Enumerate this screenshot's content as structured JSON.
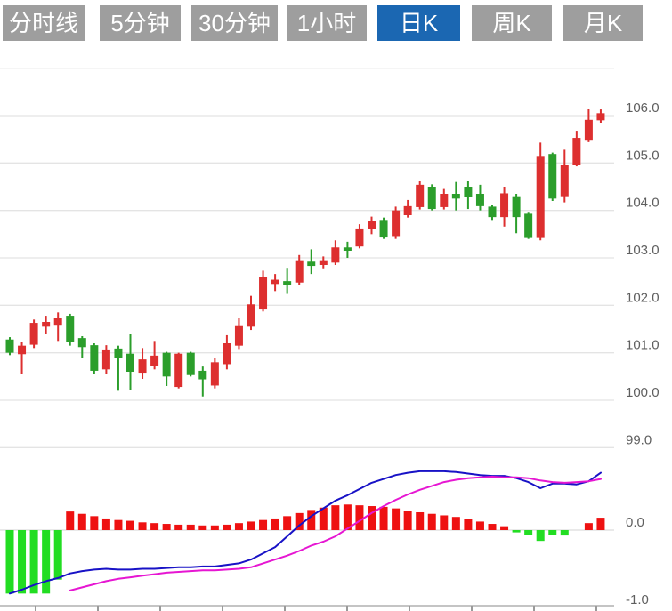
{
  "toolbar": {
    "tabs": [
      {
        "label": "分时线",
        "active": false
      },
      {
        "label": "5分钟",
        "active": false
      },
      {
        "label": "30分钟",
        "active": false
      },
      {
        "label": "1小时",
        "active": false
      },
      {
        "label": "日K",
        "active": true
      },
      {
        "label": "周K",
        "active": false
      },
      {
        "label": "月K",
        "active": false
      }
    ]
  },
  "colors": {
    "tab_bg": "#9e9e9e",
    "tab_active_bg": "#1b67b2",
    "tab_text": "#ffffff",
    "candle_up": "#dd2f2f",
    "candle_down": "#2b9e2b",
    "macd_bar_up": "#ee1111",
    "macd_bar_down": "#22dd22",
    "dif_line": "#1812c6",
    "dea_line": "#e616d2",
    "gridline": "#e4e4e4",
    "zero_line": "#dcdcdc",
    "axis_border": "#c4c4c4",
    "tick": "#9a9a9a",
    "axis_label": "#5f5f5f"
  },
  "chart_data": {
    "type": "candlestick",
    "title": "",
    "legend": [],
    "grid": true,
    "up_color_convention": "red = close above open, green = close below open",
    "price_panel": {
      "ylim": [
        99,
        107
      ],
      "gridline_values": [
        107,
        106,
        105,
        104,
        103,
        102,
        101,
        100,
        99
      ],
      "axis_labels": [
        "106.0",
        "105.0",
        "104.0",
        "103.0",
        "102.0",
        "101.0",
        "100.0",
        "99.0"
      ],
      "ohlc": [
        [
          101.28,
          101.33,
          100.95,
          101.0
        ],
        [
          100.97,
          101.22,
          100.55,
          101.15
        ],
        [
          101.17,
          101.7,
          101.1,
          101.63
        ],
        [
          101.55,
          101.78,
          101.4,
          101.65
        ],
        [
          101.59,
          101.85,
          101.25,
          101.74
        ],
        [
          101.78,
          101.82,
          101.15,
          101.22
        ],
        [
          101.31,
          101.35,
          100.9,
          101.12
        ],
        [
          101.16,
          101.2,
          100.55,
          100.62
        ],
        [
          100.65,
          101.16,
          100.55,
          101.07
        ],
        [
          101.09,
          101.15,
          100.2,
          100.9
        ],
        [
          100.98,
          101.4,
          100.22,
          100.6
        ],
        [
          100.58,
          101.1,
          100.45,
          100.86
        ],
        [
          100.72,
          101.25,
          100.65,
          100.94
        ],
        [
          101.0,
          101.02,
          100.3,
          100.5
        ],
        [
          100.28,
          101.0,
          100.25,
          100.98
        ],
        [
          101.0,
          101.02,
          100.5,
          100.53
        ],
        [
          100.62,
          100.71,
          100.08,
          100.44
        ],
        [
          100.31,
          100.9,
          100.25,
          100.8
        ],
        [
          100.76,
          101.37,
          100.65,
          101.2
        ],
        [
          101.15,
          101.73,
          101.08,
          101.58
        ],
        [
          101.55,
          102.2,
          101.48,
          102.02
        ],
        [
          101.93,
          102.73,
          101.87,
          102.6
        ],
        [
          102.45,
          102.66,
          102.3,
          102.54
        ],
        [
          102.51,
          102.79,
          102.24,
          102.42
        ],
        [
          102.48,
          103.06,
          102.43,
          102.95
        ],
        [
          102.92,
          103.18,
          102.66,
          102.83
        ],
        [
          102.85,
          103.03,
          102.78,
          102.95
        ],
        [
          102.9,
          103.37,
          102.85,
          103.22
        ],
        [
          103.22,
          103.34,
          103.0,
          103.15
        ],
        [
          103.24,
          103.71,
          103.2,
          103.62
        ],
        [
          103.6,
          103.87,
          103.5,
          103.78
        ],
        [
          103.8,
          103.85,
          103.4,
          103.43
        ],
        [
          103.46,
          104.08,
          103.4,
          104.0
        ],
        [
          103.9,
          104.22,
          103.85,
          104.09
        ],
        [
          104.07,
          104.62,
          104.02,
          104.54
        ],
        [
          104.5,
          104.55,
          104.0,
          104.03
        ],
        [
          104.07,
          104.47,
          104.02,
          104.35
        ],
        [
          104.35,
          104.6,
          104.0,
          104.25
        ],
        [
          104.5,
          104.62,
          104.03,
          104.28
        ],
        [
          104.35,
          104.54,
          104.0,
          104.09
        ],
        [
          104.08,
          104.12,
          103.8,
          103.86
        ],
        [
          103.86,
          104.5,
          103.66,
          104.36
        ],
        [
          104.3,
          104.35,
          103.52,
          103.86
        ],
        [
          103.93,
          103.97,
          103.4,
          103.42
        ],
        [
          103.42,
          105.43,
          103.37,
          105.15
        ],
        [
          105.19,
          105.22,
          104.2,
          104.25
        ],
        [
          104.3,
          105.28,
          104.17,
          104.96
        ],
        [
          104.96,
          105.68,
          104.93,
          105.53
        ],
        [
          105.49,
          106.15,
          105.44,
          105.91
        ],
        [
          105.9,
          106.13,
          105.85,
          106.05
        ]
      ]
    },
    "macd_panel": {
      "ylim": [
        -1.0,
        1.0
      ],
      "axis_labels": [
        "0.0",
        "-1.0"
      ],
      "histogram": [
        -0.82,
        -0.82,
        -0.82,
        -0.82,
        -0.64,
        0.24,
        0.21,
        0.18,
        0.15,
        0.13,
        0.12,
        0.1,
        0.09,
        0.08,
        0.07,
        0.07,
        0.06,
        0.06,
        0.07,
        0.09,
        0.11,
        0.13,
        0.15,
        0.18,
        0.22,
        0.26,
        0.29,
        0.32,
        0.33,
        0.32,
        0.31,
        0.3,
        0.28,
        0.25,
        0.23,
        0.21,
        0.19,
        0.17,
        0.14,
        0.11,
        0.08,
        0.05,
        -0.03,
        -0.06,
        -0.14,
        -0.06,
        -0.07,
        0.0,
        0.09,
        0.16
      ],
      "dif": [
        -0.82,
        -0.77,
        -0.71,
        -0.66,
        -0.62,
        -0.56,
        -0.53,
        -0.51,
        -0.5,
        -0.51,
        -0.51,
        -0.5,
        -0.5,
        -0.49,
        -0.48,
        -0.48,
        -0.47,
        -0.47,
        -0.45,
        -0.43,
        -0.38,
        -0.3,
        -0.22,
        -0.08,
        0.06,
        0.18,
        0.28,
        0.38,
        0.45,
        0.53,
        0.61,
        0.66,
        0.71,
        0.74,
        0.76,
        0.76,
        0.76,
        0.75,
        0.73,
        0.71,
        0.7,
        0.7,
        0.67,
        0.62,
        0.54,
        0.6,
        0.6,
        0.59,
        0.63,
        0.74
      ],
      "dea": [
        null,
        null,
        null,
        null,
        null,
        -0.78,
        -0.74,
        -0.7,
        -0.66,
        -0.63,
        -0.61,
        -0.59,
        -0.57,
        -0.55,
        -0.54,
        -0.53,
        -0.52,
        -0.52,
        -0.51,
        -0.5,
        -0.48,
        -0.43,
        -0.38,
        -0.33,
        -0.27,
        -0.2,
        -0.15,
        -0.08,
        0.02,
        0.12,
        0.22,
        0.31,
        0.39,
        0.46,
        0.52,
        0.57,
        0.62,
        0.65,
        0.67,
        0.68,
        0.69,
        0.68,
        0.68,
        0.67,
        0.64,
        0.62,
        0.61,
        0.62,
        0.63,
        0.66
      ]
    }
  }
}
